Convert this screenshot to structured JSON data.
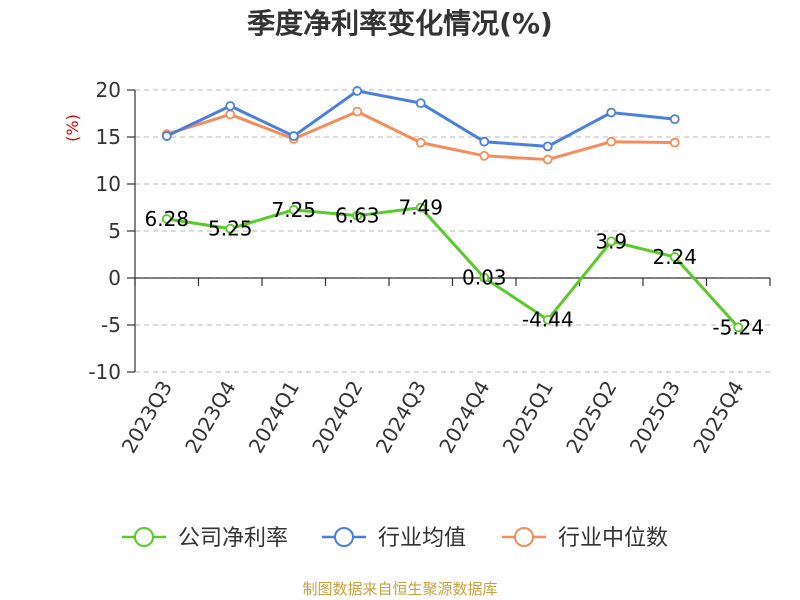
{
  "chart_data": {
    "type": "line",
    "title": "季度净利率变化情况(%)",
    "unit": "(%)",
    "categories": [
      "2023Q3",
      "2023Q4",
      "2024Q1",
      "2024Q2",
      "2024Q3",
      "2024Q4",
      "2025Q1",
      "2025Q2",
      "2025Q3",
      "2025Q4"
    ],
    "ylim": [
      -10,
      20
    ],
    "yticks": [
      -10,
      -5,
      0,
      5,
      10,
      15,
      20
    ],
    "grid": true,
    "legend_position": "bottom",
    "series": [
      {
        "name": "公司净利率",
        "color": "#5ac92a",
        "values": [
          6.28,
          5.25,
          7.25,
          6.63,
          7.49,
          0.03,
          -4.44,
          3.9,
          2.24,
          -5.24
        ],
        "labels": [
          "6.28",
          "5.25",
          "7.25",
          "6.63",
          "7.49",
          "0.03",
          "-4.44",
          "3.9",
          "2.24",
          "-5.24"
        ]
      },
      {
        "name": "行业均值",
        "color": "#4a7fdc",
        "values": [
          15.1,
          18.3,
          15.1,
          19.9,
          18.6,
          14.5,
          14.0,
          17.6,
          16.9,
          null
        ]
      },
      {
        "name": "行业中位数",
        "color": "#f58c5c",
        "values": [
          15.3,
          17.4,
          14.8,
          17.7,
          14.4,
          13.0,
          12.6,
          14.5,
          14.4,
          null
        ]
      }
    ],
    "source": "制图数据来自恒生聚源数据库"
  }
}
